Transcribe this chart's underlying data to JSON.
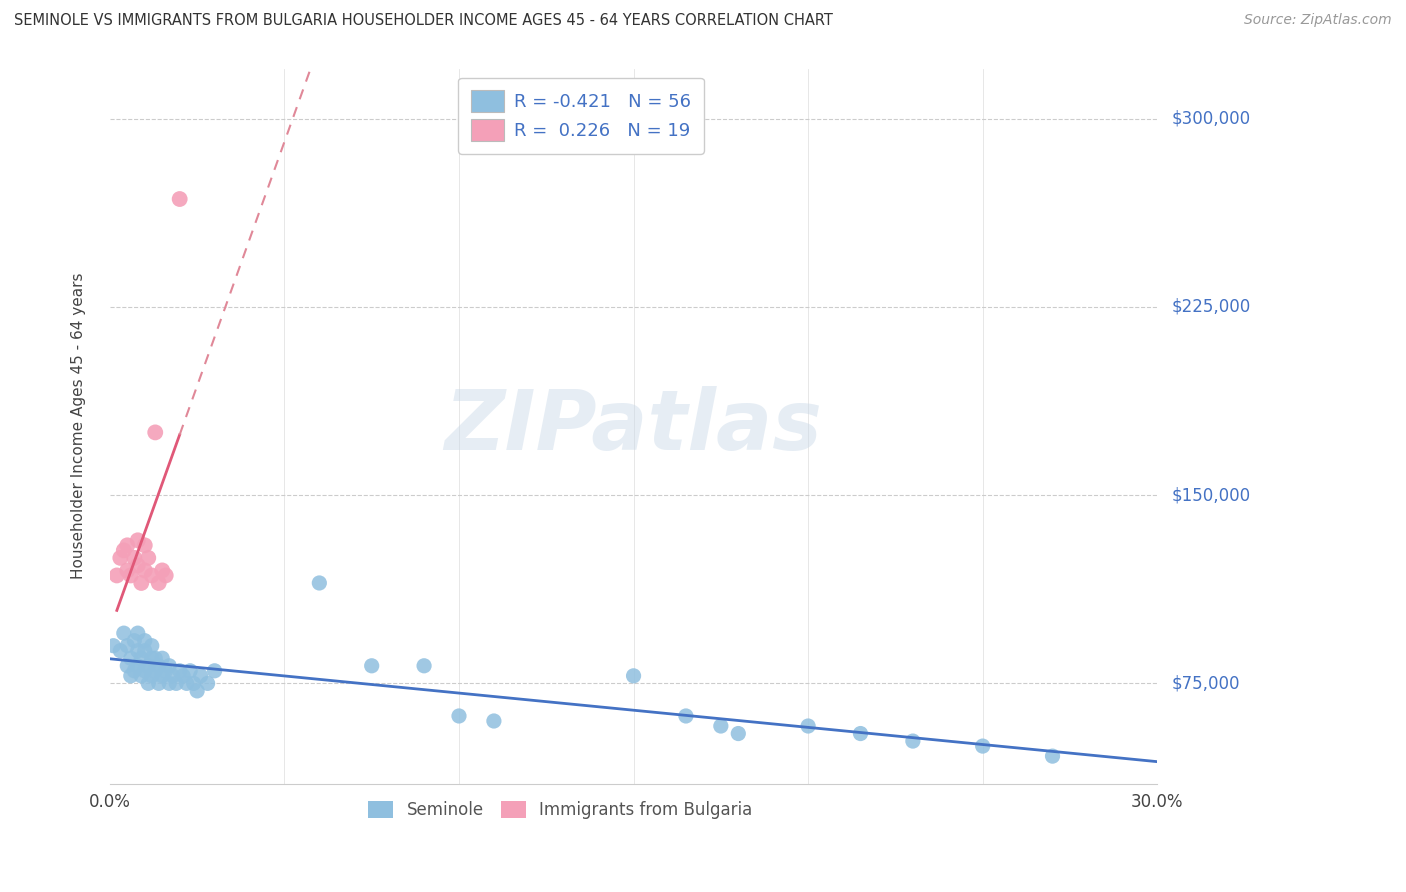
{
  "title": "SEMINOLE VS IMMIGRANTS FROM BULGARIA HOUSEHOLDER INCOME AGES 45 - 64 YEARS CORRELATION CHART",
  "source": "Source: ZipAtlas.com",
  "ylabel": "Householder Income Ages 45 - 64 years",
  "legend_label1": "Seminole",
  "legend_label2": "Immigrants from Bulgaria",
  "legend_R1": "R = -0.421",
  "legend_N1": "N = 56",
  "legend_R2": "R =  0.226",
  "legend_N2": "N = 19",
  "watermark": "ZIPatlas",
  "ytick_labels": [
    "$75,000",
    "$150,000",
    "$225,000",
    "$300,000"
  ],
  "ytick_values": [
    75000,
    150000,
    225000,
    300000
  ],
  "color_blue": "#8fbfdf",
  "color_pink": "#f4a0b8",
  "color_blue_line": "#4472c4",
  "color_pink_solid": "#e05878",
  "color_pink_dashed": "#e08898",
  "xlim": [
    0.0,
    0.3
  ],
  "ylim": [
    35000,
    320000
  ],
  "seminole_x": [
    0.001,
    0.003,
    0.004,
    0.005,
    0.005,
    0.006,
    0.006,
    0.007,
    0.007,
    0.008,
    0.008,
    0.008,
    0.009,
    0.009,
    0.01,
    0.01,
    0.01,
    0.011,
    0.011,
    0.012,
    0.012,
    0.012,
    0.013,
    0.013,
    0.014,
    0.014,
    0.015,
    0.015,
    0.016,
    0.017,
    0.017,
    0.018,
    0.019,
    0.02,
    0.021,
    0.022,
    0.023,
    0.024,
    0.025,
    0.026,
    0.028,
    0.03,
    0.06,
    0.075,
    0.09,
    0.1,
    0.11,
    0.15,
    0.165,
    0.175,
    0.18,
    0.2,
    0.215,
    0.23,
    0.25,
    0.27
  ],
  "seminole_y": [
    90000,
    88000,
    95000,
    82000,
    90000,
    78000,
    85000,
    80000,
    92000,
    88000,
    82000,
    95000,
    78000,
    85000,
    80000,
    88000,
    92000,
    75000,
    82000,
    85000,
    78000,
    90000,
    80000,
    85000,
    75000,
    82000,
    78000,
    85000,
    80000,
    75000,
    82000,
    78000,
    75000,
    80000,
    78000,
    75000,
    80000,
    75000,
    72000,
    78000,
    75000,
    80000,
    115000,
    82000,
    82000,
    62000,
    60000,
    78000,
    62000,
    58000,
    55000,
    58000,
    55000,
    52000,
    50000,
    46000
  ],
  "bulgaria_x": [
    0.002,
    0.003,
    0.004,
    0.005,
    0.005,
    0.006,
    0.007,
    0.008,
    0.008,
    0.009,
    0.01,
    0.01,
    0.011,
    0.012,
    0.013,
    0.014,
    0.015,
    0.016,
    0.02
  ],
  "bulgaria_y": [
    118000,
    125000,
    128000,
    130000,
    120000,
    118000,
    125000,
    122000,
    132000,
    115000,
    120000,
    130000,
    125000,
    118000,
    175000,
    115000,
    120000,
    118000,
    268000
  ],
  "seminole_R": -0.421,
  "seminole_N": 56,
  "bulgaria_R": 0.226,
  "bulgaria_N": 19
}
